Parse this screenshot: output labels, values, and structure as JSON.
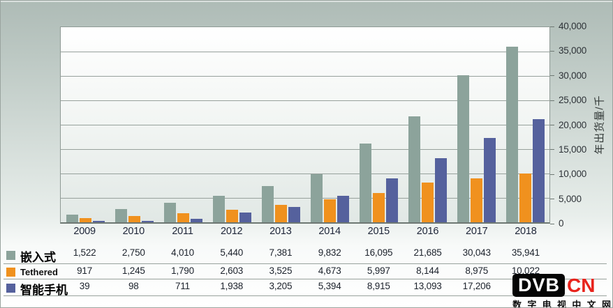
{
  "chart_data": {
    "type": "bar",
    "title": "",
    "categories": [
      "2009",
      "2010",
      "2011",
      "2012",
      "2013",
      "2014",
      "2015",
      "2016",
      "2017",
      "2018"
    ],
    "series": [
      {
        "name": "嵌入式",
        "color": "#8ca39b",
        "values": [
          1522,
          2750,
          4010,
          5440,
          7381,
          9832,
          16095,
          21685,
          30043,
          35941
        ]
      },
      {
        "name": "Tethered",
        "color": "#f0911e",
        "values": [
          917,
          1245,
          1790,
          2603,
          3525,
          4673,
          5997,
          8144,
          8975,
          10022
        ]
      },
      {
        "name": "智能手机",
        "color": "#55619d",
        "values": [
          39,
          98,
          711,
          1938,
          3205,
          5394,
          8915,
          13093,
          17206,
          21000
        ]
      }
    ],
    "xlabel": "",
    "ylabel": "年出货量/千",
    "ylim": [
      0,
      40000
    ],
    "yticks_top_down": [
      "40,000",
      "35,000",
      "30,000",
      "25,000",
      "20,000",
      "15,000",
      "10,000",
      "5,000",
      "0"
    ],
    "grid": "horizontal",
    "legend_position": "table-left"
  },
  "table": {
    "years": [
      "2009",
      "2010",
      "2011",
      "2012",
      "2013",
      "2014",
      "2015",
      "2016",
      "2017",
      "2018"
    ],
    "rows": [
      {
        "name": "嵌入式",
        "lang": "zh",
        "color": "#8ca39b",
        "values": [
          "1,522",
          "2,750",
          "4,010",
          "5,440",
          "7,381",
          "9,832",
          "16,095",
          "21,685",
          "30,043",
          "35,941"
        ]
      },
      {
        "name": "Tethered",
        "lang": "en",
        "color": "#f0911e",
        "values": [
          "917",
          "1,245",
          "1,790",
          "2,603",
          "3,525",
          "4,673",
          "5,997",
          "8,144",
          "8,975",
          "10,022"
        ]
      },
      {
        "name": "智能手机",
        "lang": "zh",
        "color": "#55619d",
        "values": [
          "39",
          "98",
          "711",
          "1,938",
          "3,205",
          "5,394",
          "8,915",
          "13,093",
          "17,206",
          ""
        ]
      }
    ]
  },
  "watermark": {
    "dvb": "DVB",
    "cn": "CN",
    "subtitle_chars": [
      "数",
      "字",
      "电",
      "视",
      "中",
      "文",
      "网"
    ]
  }
}
